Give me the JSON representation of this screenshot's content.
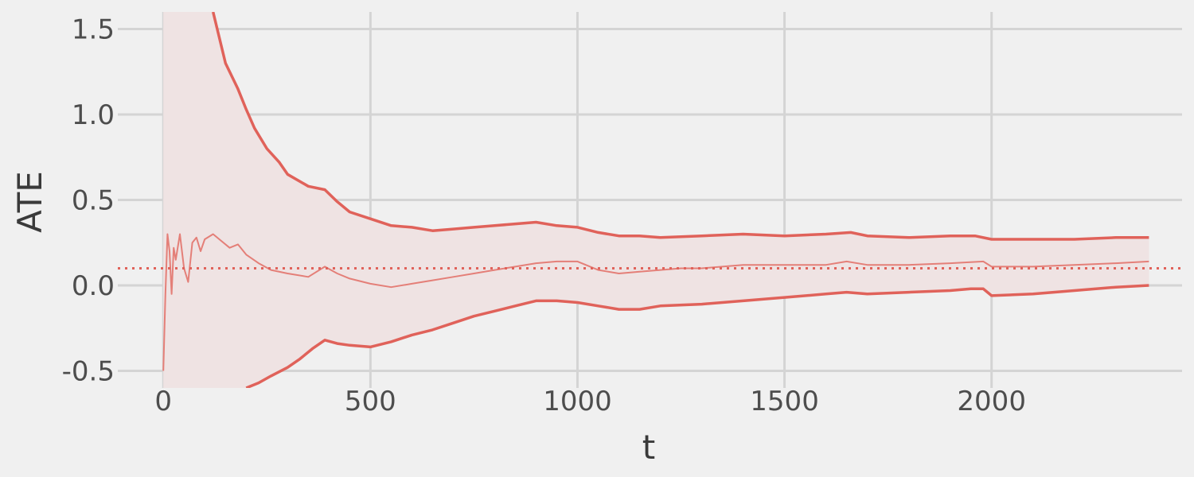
{
  "chart_data": {
    "type": "line",
    "title": "",
    "xlabel": "t",
    "ylabel": "ATE",
    "xlim": [
      -110,
      2460
    ],
    "ylim": [
      -0.6,
      1.6
    ],
    "x_ticks": [
      0,
      500,
      1000,
      1500,
      2000
    ],
    "x_tick_labels": [
      "0",
      "500",
      "1000",
      "1500",
      "2000"
    ],
    "y_ticks": [
      -0.5,
      0.0,
      0.5,
      1.0,
      1.5
    ],
    "y_tick_labels": [
      "-0.5",
      "0.0",
      "0.5",
      "1.0",
      "1.5"
    ],
    "grid": true,
    "legend": "none",
    "reference_line": {
      "y": 0.1,
      "style": "dotted"
    },
    "colors": {
      "line": "#e0625a",
      "estimate": "#e47f78",
      "band": "#efe3e3",
      "grid": "#d4d4d4",
      "background": "#f0f0f0"
    },
    "series": [
      {
        "role": "upper",
        "x": [
          120,
          130,
          150,
          180,
          200,
          220,
          250,
          280,
          300,
          350,
          390,
          420,
          450,
          500,
          550,
          600,
          650,
          700,
          750,
          800,
          850,
          900,
          950,
          1000,
          1050,
          1100,
          1150,
          1200,
          1300,
          1400,
          1500,
          1600,
          1660,
          1700,
          1800,
          1900,
          1960,
          2000,
          2100,
          2200,
          2300,
          2380
        ],
        "y": [
          1.6,
          1.5,
          1.3,
          1.15,
          1.03,
          0.92,
          0.8,
          0.72,
          0.65,
          0.58,
          0.56,
          0.49,
          0.43,
          0.39,
          0.35,
          0.34,
          0.32,
          0.33,
          0.34,
          0.35,
          0.36,
          0.37,
          0.35,
          0.34,
          0.31,
          0.29,
          0.29,
          0.28,
          0.29,
          0.3,
          0.29,
          0.3,
          0.31,
          0.29,
          0.28,
          0.29,
          0.29,
          0.27,
          0.27,
          0.27,
          0.28,
          0.28
        ]
      },
      {
        "role": "estimate",
        "x": [
          0,
          5,
          10,
          15,
          20,
          25,
          30,
          40,
          50,
          60,
          70,
          80,
          90,
          100,
          120,
          140,
          160,
          180,
          200,
          230,
          260,
          300,
          350,
          390,
          420,
          450,
          500,
          550,
          600,
          650,
          700,
          750,
          800,
          850,
          900,
          950,
          1000,
          1050,
          1100,
          1150,
          1200,
          1250,
          1300,
          1400,
          1500,
          1600,
          1650,
          1700,
          1800,
          1900,
          1980,
          2000,
          2100,
          2200,
          2300,
          2380
        ],
        "y": [
          -0.5,
          -0.05,
          0.3,
          0.2,
          -0.05,
          0.22,
          0.15,
          0.3,
          0.1,
          0.02,
          0.25,
          0.28,
          0.2,
          0.27,
          0.3,
          0.26,
          0.22,
          0.24,
          0.18,
          0.13,
          0.09,
          0.07,
          0.05,
          0.11,
          0.07,
          0.04,
          0.01,
          -0.01,
          0.01,
          0.03,
          0.05,
          0.07,
          0.09,
          0.11,
          0.13,
          0.14,
          0.14,
          0.09,
          0.07,
          0.08,
          0.09,
          0.1,
          0.1,
          0.12,
          0.12,
          0.12,
          0.14,
          0.12,
          0.12,
          0.13,
          0.14,
          0.11,
          0.11,
          0.12,
          0.13,
          0.14
        ]
      },
      {
        "role": "lower",
        "x": [
          200,
          230,
          260,
          300,
          330,
          360,
          390,
          420,
          450,
          500,
          550,
          600,
          650,
          700,
          750,
          800,
          850,
          900,
          950,
          1000,
          1050,
          1100,
          1150,
          1200,
          1300,
          1400,
          1500,
          1600,
          1650,
          1700,
          1800,
          1900,
          1950,
          1980,
          2000,
          2100,
          2200,
          2300,
          2380
        ],
        "y": [
          -0.6,
          -0.57,
          -0.53,
          -0.48,
          -0.43,
          -0.37,
          -0.32,
          -0.34,
          -0.35,
          -0.36,
          -0.33,
          -0.29,
          -0.26,
          -0.22,
          -0.18,
          -0.15,
          -0.12,
          -0.09,
          -0.09,
          -0.1,
          -0.12,
          -0.14,
          -0.14,
          -0.12,
          -0.11,
          -0.09,
          -0.07,
          -0.05,
          -0.04,
          -0.05,
          -0.04,
          -0.03,
          -0.02,
          -0.02,
          -0.06,
          -0.05,
          -0.03,
          -0.01,
          0.0
        ]
      }
    ]
  }
}
